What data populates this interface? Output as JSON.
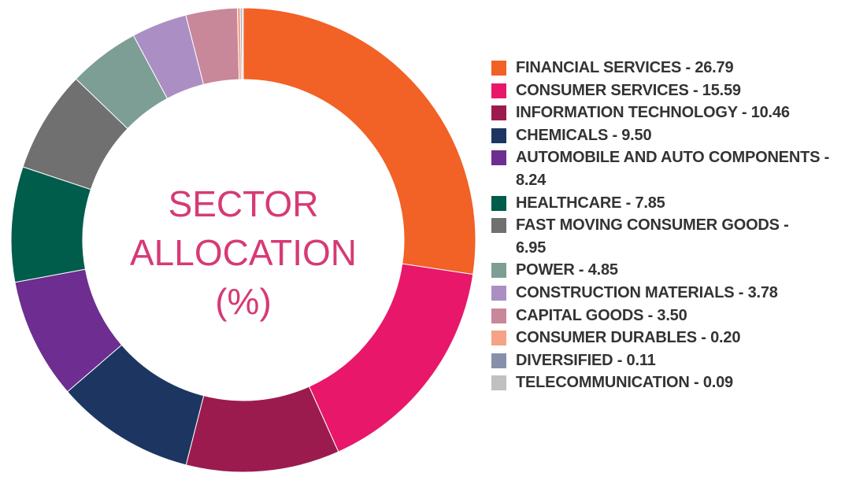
{
  "chart_data": {
    "type": "donut",
    "title": "SECTOR\nALLOCATION\n(%)",
    "categories": [
      "FINANCIAL SERVICES - 26.79",
      "CONSUMER SERVICES - 15.59",
      "INFORMATION TECHNOLOGY - 10.46",
      "CHEMICALS - 9.50",
      "AUTOMOBILE AND AUTO COMPONENTS -\n8.24",
      "HEALTHCARE - 7.85",
      "FAST MOVING CONSUMER GOODS -\n6.95",
      "POWER - 4.85",
      "CONSTRUCTION MATERIALS - 3.78",
      "CAPITAL GOODS - 3.50",
      "CONSUMER DURABLES - 0.20",
      "DIVERSIFIED - 0.11",
      "TELECOMMUNICATION - 0.09"
    ],
    "values": [
      26.79,
      15.59,
      10.46,
      9.5,
      8.24,
      7.85,
      6.95,
      4.85,
      3.78,
      3.5,
      0.2,
      0.11,
      0.09
    ],
    "colors": [
      "#f26125",
      "#e8176a",
      "#9b1b4e",
      "#1c3661",
      "#6d2d91",
      "#005c4b",
      "#707070",
      "#7c9e94",
      "#ab8fc4",
      "#c9879a",
      "#f6a287",
      "#8790ab",
      "#c0c0c0"
    ],
    "legend": "right"
  }
}
